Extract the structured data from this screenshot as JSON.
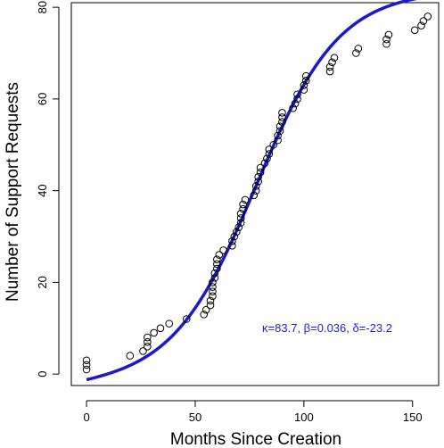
{
  "chart_data": {
    "type": "scatter",
    "xlabel": "Months Since Creation",
    "ylabel": "Number of Support Requests",
    "xlim": [
      -7,
      162
    ],
    "ylim": [
      -2.5,
      81
    ],
    "xticks": [
      0,
      50,
      100,
      150
    ],
    "yticks": [
      0,
      20,
      40,
      60,
      80
    ],
    "grid": false,
    "annotation": "κ=83.7, β=0.036, δ=-23.2",
    "annotation_color": "#1a1aff",
    "fit_color": "#1a1acc",
    "point_color": "#000000",
    "fit_params": {
      "kappa": 83.7,
      "beta": 0.036,
      "delta": -23.2
    },
    "points": [
      [
        0,
        1
      ],
      [
        0,
        2
      ],
      [
        0,
        3
      ],
      [
        20,
        4
      ],
      [
        26,
        5
      ],
      [
        28,
        6
      ],
      [
        28,
        7
      ],
      [
        28,
        8
      ],
      [
        31,
        9
      ],
      [
        34,
        10
      ],
      [
        38,
        11
      ],
      [
        46,
        12
      ],
      [
        54,
        13
      ],
      [
        55,
        14
      ],
      [
        57,
        15
      ],
      [
        57,
        16
      ],
      [
        58,
        17
      ],
      [
        58,
        18
      ],
      [
        58,
        19
      ],
      [
        58,
        20
      ],
      [
        59,
        21
      ],
      [
        59,
        22
      ],
      [
        60,
        23
      ],
      [
        60,
        24
      ],
      [
        60,
        25
      ],
      [
        61,
        26
      ],
      [
        63,
        27
      ],
      [
        67,
        28
      ],
      [
        67,
        29
      ],
      [
        68,
        30
      ],
      [
        69,
        31
      ],
      [
        70,
        32
      ],
      [
        71,
        33
      ],
      [
        71,
        34
      ],
      [
        71,
        35
      ],
      [
        72,
        36
      ],
      [
        72,
        37
      ],
      [
        73,
        38
      ],
      [
        77,
        39
      ],
      [
        78,
        40
      ],
      [
        78,
        41
      ],
      [
        79,
        42
      ],
      [
        79,
        43
      ],
      [
        80,
        44
      ],
      [
        80,
        45
      ],
      [
        82,
        46
      ],
      [
        83,
        47
      ],
      [
        84,
        48
      ],
      [
        84,
        49
      ],
      [
        86,
        50
      ],
      [
        88,
        51
      ],
      [
        88,
        52
      ],
      [
        89,
        53
      ],
      [
        89,
        54
      ],
      [
        90,
        55
      ],
      [
        90,
        56
      ],
      [
        90,
        57
      ],
      [
        95,
        58
      ],
      [
        96,
        59
      ],
      [
        97,
        60
      ],
      [
        97,
        61
      ],
      [
        100,
        62
      ],
      [
        100,
        63
      ],
      [
        101,
        64
      ],
      [
        101,
        65
      ],
      [
        112,
        66
      ],
      [
        112,
        67
      ],
      [
        113,
        68
      ],
      [
        114,
        69
      ],
      [
        124,
        70
      ],
      [
        125,
        71
      ],
      [
        138,
        72
      ],
      [
        138,
        73
      ],
      [
        139,
        74
      ],
      [
        151,
        75
      ],
      [
        154,
        76
      ],
      [
        155,
        77
      ],
      [
        157,
        78
      ]
    ]
  }
}
